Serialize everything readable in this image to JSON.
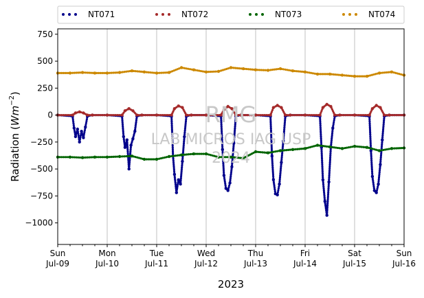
{
  "chart_data": {
    "type": "scatter",
    "title": "",
    "xlabel": "2023",
    "ylabel": "Radiation (Wm⁻²)",
    "ylabel_parts": {
      "prefix": "Radiation (",
      "unit": "Wm",
      "exponent": "−2",
      "suffix": ")"
    },
    "ylim": [
      -1200,
      800
    ],
    "xlim": [
      0,
      7
    ],
    "x_unit": "days since Sun Jul-09 00:00",
    "yticks": [
      -1000,
      -750,
      -500,
      -250,
      0,
      250,
      500,
      750
    ],
    "ytick_labels": [
      "−1000",
      "−750",
      "−500",
      "−250",
      "0",
      "250",
      "500",
      "750"
    ],
    "xticks": [
      {
        "day": 0,
        "line1": "Sun",
        "line2": "Jul-09"
      },
      {
        "day": 1,
        "line1": "Mon",
        "line2": "Jul-10"
      },
      {
        "day": 2,
        "line1": "Tue",
        "line2": "Jul-11"
      },
      {
        "day": 3,
        "line1": "Wed",
        "line2": "Jul-12"
      },
      {
        "day": 4,
        "line1": "Thu",
        "line2": "Jul-13"
      },
      {
        "day": 5,
        "line1": "Fri",
        "line2": "Jul-14"
      },
      {
        "day": 6,
        "line1": "Sat",
        "line2": "Jul-15"
      },
      {
        "day": 7,
        "line1": "Sun",
        "line2": "Jul-16"
      }
    ],
    "grid": "vertical",
    "legend_position": "top",
    "watermark": [
      "RMG",
      "LAB MICROS IAG USP",
      "2024"
    ],
    "series": [
      {
        "name": "NT071",
        "color": "#00008b",
        "x": [
          0.0,
          0.3,
          0.33,
          0.36,
          0.4,
          0.44,
          0.48,
          0.52,
          0.56,
          0.6,
          0.7,
          1.0,
          1.3,
          1.33,
          1.36,
          1.4,
          1.44,
          1.48,
          1.52,
          1.56,
          1.6,
          1.7,
          2.0,
          2.3,
          2.33,
          2.36,
          2.4,
          2.44,
          2.48,
          2.52,
          2.56,
          2.6,
          2.7,
          3.0,
          3.3,
          3.33,
          3.36,
          3.4,
          3.44,
          3.48,
          3.52,
          3.56,
          3.6,
          3.7,
          4.0,
          4.3,
          4.33,
          4.36,
          4.4,
          4.44,
          4.48,
          4.52,
          4.56,
          4.6,
          4.7,
          5.0,
          5.3,
          5.33,
          5.36,
          5.4,
          5.44,
          5.48,
          5.52,
          5.56,
          5.6,
          5.7,
          6.0,
          6.3,
          6.33,
          6.36,
          6.4,
          6.44,
          6.48,
          6.52,
          6.56,
          6.6,
          6.7,
          7.0
        ],
        "y": [
          0,
          -10,
          -120,
          -200,
          -130,
          -250,
          -150,
          -210,
          -110,
          -10,
          0,
          0,
          -10,
          -200,
          -300,
          -230,
          -500,
          -280,
          -220,
          -150,
          -10,
          0,
          0,
          -10,
          -380,
          -550,
          -720,
          -600,
          -640,
          -430,
          -200,
          -10,
          0,
          0,
          -10,
          -320,
          -560,
          -680,
          -700,
          -630,
          -480,
          -260,
          -10,
          0,
          0,
          -10,
          -380,
          -600,
          -730,
          -740,
          -640,
          -440,
          -240,
          -10,
          0,
          0,
          -10,
          -300,
          -600,
          -800,
          -930,
          -620,
          -300,
          -120,
          -10,
          0,
          0,
          -10,
          -330,
          -570,
          -700,
          -720,
          -640,
          -460,
          -230,
          -10,
          0,
          0
        ]
      },
      {
        "name": "NT072",
        "color": "#a52a2a",
        "x": [
          0.0,
          0.3,
          0.36,
          0.44,
          0.52,
          0.6,
          0.7,
          1.0,
          1.3,
          1.36,
          1.44,
          1.52,
          1.6,
          1.7,
          2.0,
          2.3,
          2.36,
          2.44,
          2.52,
          2.6,
          2.7,
          3.0,
          3.3,
          3.36,
          3.44,
          3.52,
          3.6,
          3.7,
          4.0,
          4.3,
          4.36,
          4.44,
          4.52,
          4.6,
          4.7,
          5.0,
          5.3,
          5.36,
          5.44,
          5.52,
          5.6,
          5.7,
          6.0,
          6.3,
          6.36,
          6.44,
          6.52,
          6.6,
          6.7,
          7.0
        ],
        "y": [
          0,
          0,
          20,
          30,
          20,
          0,
          0,
          0,
          0,
          40,
          60,
          40,
          0,
          0,
          0,
          0,
          60,
          85,
          70,
          0,
          0,
          0,
          0,
          50,
          80,
          60,
          0,
          0,
          0,
          0,
          70,
          90,
          70,
          0,
          0,
          0,
          0,
          70,
          100,
          80,
          0,
          0,
          0,
          0,
          60,
          90,
          70,
          0,
          0,
          0
        ]
      },
      {
        "name": "NT073",
        "color": "#006400",
        "x": [
          0.0,
          0.25,
          0.5,
          0.75,
          1.0,
          1.25,
          1.5,
          1.75,
          2.0,
          2.25,
          2.5,
          2.75,
          3.0,
          3.25,
          3.5,
          3.75,
          4.0,
          4.25,
          4.5,
          4.75,
          5.0,
          5.25,
          5.5,
          5.75,
          6.0,
          6.25,
          6.5,
          6.75,
          7.0
        ],
        "y": [
          -390,
          -390,
          -395,
          -390,
          -390,
          -385,
          -380,
          -410,
          -410,
          -385,
          -370,
          -360,
          -360,
          -390,
          -390,
          -400,
          -340,
          -350,
          -330,
          -320,
          -310,
          -280,
          -295,
          -310,
          -290,
          -300,
          -330,
          -310,
          -305
        ]
      },
      {
        "name": "NT074",
        "color": "#cc8800",
        "x": [
          0.0,
          0.25,
          0.5,
          0.75,
          1.0,
          1.25,
          1.5,
          1.75,
          2.0,
          2.25,
          2.5,
          2.75,
          3.0,
          3.25,
          3.5,
          3.75,
          4.0,
          4.25,
          4.5,
          4.75,
          5.0,
          5.25,
          5.5,
          5.75,
          6.0,
          6.25,
          6.5,
          6.75,
          7.0
        ],
        "y": [
          390,
          390,
          395,
          390,
          390,
          395,
          410,
          400,
          390,
          395,
          440,
          420,
          400,
          405,
          440,
          430,
          420,
          415,
          430,
          410,
          400,
          380,
          380,
          370,
          360,
          360,
          390,
          400,
          370
        ]
      }
    ]
  }
}
